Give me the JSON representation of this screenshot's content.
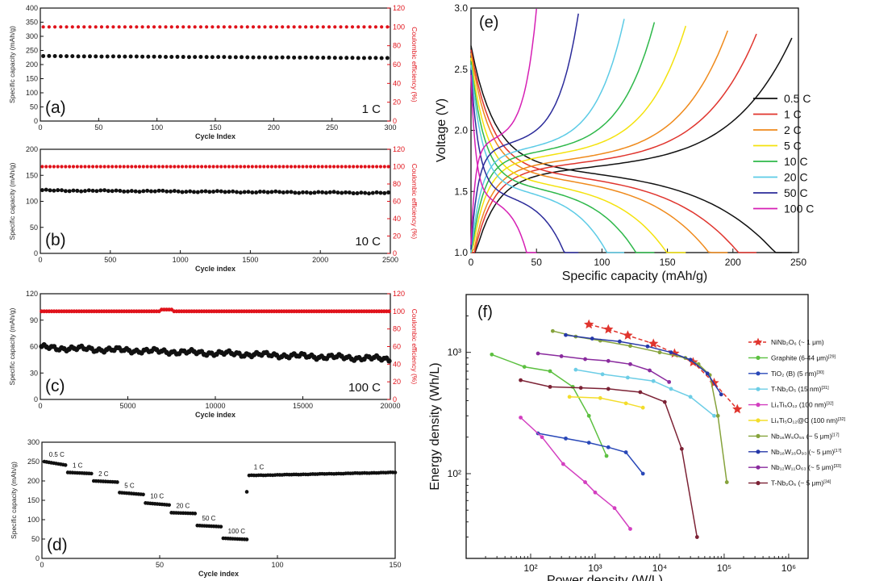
{
  "colors": {
    "black": "#111111",
    "red": "#e0121a",
    "axis": "#111111"
  },
  "chart_data": {
    "a": {
      "type": "scatter",
      "panel_label": "(a)",
      "rate_label": "1 C",
      "xlabel": "Cycle Index",
      "ylabel": "Specific capacity (mAh/g)",
      "y2label": "Coulombic efficiency (%)",
      "xlim": [
        0,
        300
      ],
      "ylim": [
        0,
        400
      ],
      "y2lim": [
        0,
        120
      ],
      "xticks": [
        0,
        50,
        100,
        150,
        200,
        250,
        300
      ],
      "yticks": [
        0,
        50,
        100,
        150,
        200,
        250,
        300,
        350,
        400
      ],
      "y2ticks": [
        0,
        20,
        40,
        60,
        80,
        100,
        120
      ],
      "capacity_start": 230,
      "capacity_end": 223,
      "efficiency": 100,
      "n_points": 60
    },
    "b": {
      "type": "scatter",
      "panel_label": "(b)",
      "rate_label": "10 C",
      "xlabel": "Cycle index",
      "ylabel": "Specific capacity (mAh/g)",
      "y2label": "Coulombic efficiency (%)",
      "xlim": [
        0,
        2500
      ],
      "ylim": [
        0,
        200
      ],
      "y2lim": [
        0,
        120
      ],
      "xticks": [
        0,
        500,
        1000,
        1500,
        2000,
        2500
      ],
      "yticks": [
        0,
        50,
        100,
        150,
        200
      ],
      "y2ticks": [
        0,
        20,
        40,
        60,
        80,
        100,
        120
      ],
      "capacity_start": 121,
      "capacity_end": 116,
      "efficiency": 100,
      "n_points": 90
    },
    "c": {
      "type": "scatter",
      "panel_label": "(c)",
      "rate_label": "100 C",
      "xlabel": "Cycle index",
      "ylabel": "Specific capacity (mAh/g)",
      "y2label": "Coulombic efficiency (%)",
      "xlim": [
        0,
        20000
      ],
      "ylim": [
        0,
        120
      ],
      "y2lim": [
        0,
        120
      ],
      "xticks": [
        0,
        5000,
        10000,
        15000,
        20000
      ],
      "yticks": [
        0,
        30,
        60,
        90,
        120
      ],
      "y2ticks": [
        0,
        20,
        40,
        60,
        80,
        100,
        120
      ],
      "capacity_start": 59,
      "capacity_end": 46,
      "efficiency": 100,
      "n_points": 140
    },
    "d": {
      "type": "scatter",
      "panel_label": "(d)",
      "xlabel": "Cycle index",
      "ylabel": "Specific capacity (mAh/g)",
      "xlim": [
        0,
        150
      ],
      "ylim": [
        0,
        300
      ],
      "xticks": [
        0,
        50,
        100,
        150
      ],
      "yticks": [
        0,
        50,
        100,
        150,
        200,
        250,
        300
      ],
      "steps": [
        {
          "label": "0.5 C",
          "x_start": 1,
          "x_end": 10,
          "value_start": 250,
          "value_end": 241
        },
        {
          "label": "1 C",
          "x_start": 11,
          "x_end": 21,
          "value_start": 222,
          "value_end": 219
        },
        {
          "label": "2 C",
          "x_start": 22,
          "x_end": 32,
          "value_start": 200,
          "value_end": 197
        },
        {
          "label": "5 C",
          "x_start": 33,
          "x_end": 43,
          "value_start": 170,
          "value_end": 165
        },
        {
          "label": "10 C",
          "x_start": 44,
          "x_end": 54,
          "value_start": 143,
          "value_end": 138
        },
        {
          "label": "20 C",
          "x_start": 55,
          "x_end": 65,
          "value_start": 118,
          "value_end": 116
        },
        {
          "label": "50 C",
          "x_start": 66,
          "x_end": 76,
          "value_start": 85,
          "value_end": 82
        },
        {
          "label": "100 C",
          "x_start": 77,
          "x_end": 87,
          "value_start": 52,
          "value_end": 49
        }
      ],
      "recovery": {
        "label": "1 C",
        "x_start": 88,
        "x_end": 150,
        "value_start": 214,
        "value_end": 222,
        "first_point": 172
      }
    },
    "e": {
      "type": "line",
      "panel_label": "(e)",
      "xlabel": "Specific capacity (mAh/g)",
      "ylabel": "Voltage (V)",
      "xlim": [
        0,
        250
      ],
      "ylim": [
        1.0,
        3.0
      ],
      "xticks": [
        0,
        50,
        100,
        150,
        200,
        250
      ],
      "yticks": [
        1.0,
        1.5,
        2.0,
        2.5,
        3.0
      ],
      "series": [
        {
          "name": "0.5 C",
          "color": "#111111",
          "capacity": 245
        },
        {
          "name": "1 C",
          "color": "#e0352e",
          "capacity": 218
        },
        {
          "name": "2 C",
          "color": "#ef8a1c",
          "capacity": 196
        },
        {
          "name": "5 C",
          "color": "#f4e20d",
          "capacity": 164
        },
        {
          "name": "10 C",
          "color": "#2eb84a",
          "capacity": 140
        },
        {
          "name": "20 C",
          "color": "#5ccbe6",
          "capacity": 117
        },
        {
          "name": "50 C",
          "color": "#2b2b9a",
          "capacity": 82
        },
        {
          "name": "100 C",
          "color": "#d61fb4",
          "capacity": 50
        }
      ]
    },
    "f": {
      "type": "line",
      "panel_label": "(f)",
      "xlabel": "Power density (W/L)",
      "ylabel": "Energy density (Wh/L)",
      "xscale": "log",
      "yscale": "log",
      "xlim": [
        10,
        2000000
      ],
      "ylim": [
        20,
        3000
      ],
      "xticks": [
        100,
        1000,
        10000,
        100000,
        1000000
      ],
      "xtick_labels": [
        "10²",
        "10³",
        "10⁴",
        "10⁵",
        "10⁶"
      ],
      "yticks": [
        100,
        1000
      ],
      "ytick_labels": [
        "10²",
        "10³"
      ],
      "series": [
        {
          "name": "NiNb₂O₆ (~ 1 μm)",
          "ref": "",
          "color": "#e0352e",
          "marker": "star",
          "dashed": true,
          "points": [
            [
              800,
              1700
            ],
            [
              1600,
              1550
            ],
            [
              3200,
              1380
            ],
            [
              8000,
              1180
            ],
            [
              17000,
              980
            ],
            [
              33000,
              830
            ],
            [
              70000,
              560
            ],
            [
              160000,
              340
            ]
          ]
        },
        {
          "name": "Graphite (6-44 μm)",
          "ref": "[29]",
          "color": "#5cc040",
          "marker": "circle",
          "points": [
            [
              25,
              960
            ],
            [
              80,
              760
            ],
            [
              200,
              700
            ],
            [
              450,
              520
            ],
            [
              800,
              300
            ],
            [
              1500,
              140
            ]
          ]
        },
        {
          "name": "TiO₂ (B) (5 nm)",
          "ref": "[30]",
          "color": "#2948b8",
          "marker": "circle",
          "points": [
            [
              130,
              215
            ],
            [
              350,
              195
            ],
            [
              800,
              180
            ],
            [
              1600,
              165
            ],
            [
              3000,
              150
            ],
            [
              5500,
              100
            ]
          ]
        },
        {
          "name": "T-Nb₂O₅ (15 nm)",
          "ref": "[31]",
          "color": "#6ccde6",
          "marker": "circle",
          "points": [
            [
              500,
              720
            ],
            [
              1300,
              660
            ],
            [
              3200,
              620
            ],
            [
              8000,
              580
            ],
            [
              15000,
              500
            ],
            [
              30000,
              430
            ],
            [
              70000,
              300
            ]
          ]
        },
        {
          "name": "Li₄Ti₅O₁₂ (100 nm)",
          "ref": "[32]",
          "color": "#d33fc0",
          "marker": "circle",
          "points": [
            [
              70,
              290
            ],
            [
              150,
              200
            ],
            [
              320,
              120
            ],
            [
              700,
              85
            ],
            [
              1000,
              70
            ],
            [
              2000,
              52
            ],
            [
              3500,
              35
            ]
          ]
        },
        {
          "name": "Li₄Ti₅O₁₂@C (100 nm)",
          "ref": "[32]",
          "color": "#f3dd2a",
          "marker": "circle",
          "points": [
            [
              400,
              430
            ],
            [
              1200,
              420
            ],
            [
              3000,
              380
            ],
            [
              5500,
              350
            ]
          ]
        },
        {
          "name": "Nb₁₆W₅O₅₅ (~ 5 μm)",
          "ref": "[17]",
          "color": "#86a33c",
          "marker": "circle",
          "points": [
            [
              220,
              1500
            ],
            [
              500,
              1350
            ],
            [
              1200,
              1250
            ],
            [
              3500,
              1130
            ],
            [
              10000,
              1000
            ],
            [
              25000,
              900
            ],
            [
              40000,
              800
            ],
            [
              60000,
              650
            ],
            [
              80000,
              300
            ],
            [
              110000,
              85
            ]
          ]
        },
        {
          "name": "Nb₁₈W₁₆O₉₃ (~ 5 μm)",
          "ref": "[17]",
          "color": "#2638a8",
          "marker": "circle",
          "points": [
            [
              350,
              1390
            ],
            [
              900,
              1300
            ],
            [
              2400,
              1230
            ],
            [
              6500,
              1120
            ],
            [
              15000,
              1000
            ],
            [
              30000,
              870
            ],
            [
              55000,
              670
            ],
            [
              90000,
              450
            ]
          ]
        },
        {
          "name": "Nb₁₂W₁₁O₆₃ (~ 5 μm)",
          "ref": "[33]",
          "color": "#8a2b9e",
          "marker": "circle",
          "points": [
            [
              130,
              980
            ],
            [
              300,
              930
            ],
            [
              700,
              880
            ],
            [
              1600,
              850
            ],
            [
              3500,
              800
            ],
            [
              7000,
              710
            ],
            [
              14000,
              570
            ]
          ]
        },
        {
          "name": "T-Nb₂O₅ (~ 5 μm)",
          "ref": "[34]",
          "color": "#7c2235",
          "marker": "circle",
          "points": [
            [
              70,
              590
            ],
            [
              200,
              520
            ],
            [
              600,
              510
            ],
            [
              1600,
              500
            ],
            [
              5000,
              470
            ],
            [
              12000,
              390
            ],
            [
              22000,
              160
            ],
            [
              38000,
              30
            ]
          ]
        }
      ]
    }
  }
}
